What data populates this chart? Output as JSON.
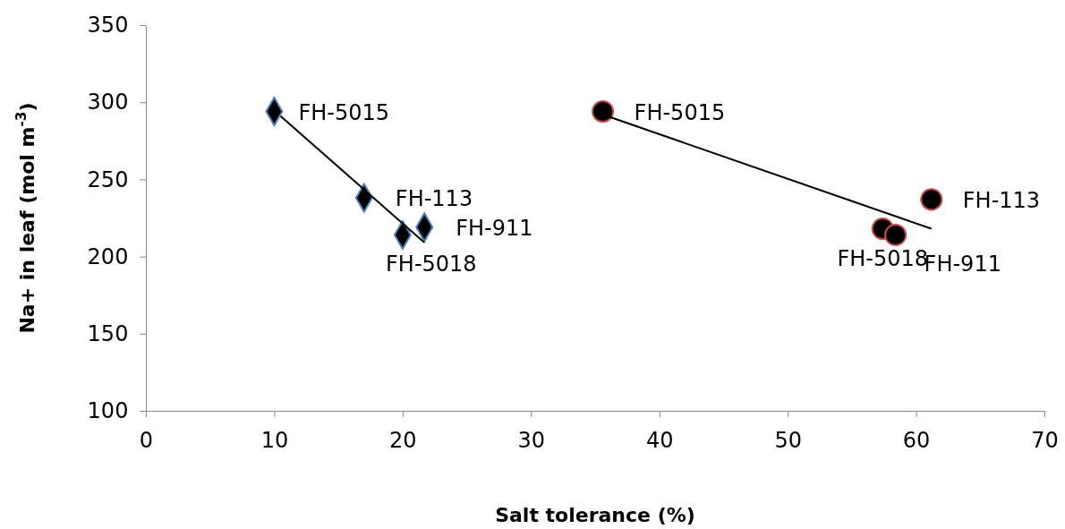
{
  "chart_data": {
    "type": "scatter",
    "xlabel": "Salt tolerance (%)",
    "ylabel": "Na+ in leaf (mol m$^{-3}$)",
    "xlim": [
      0,
      70
    ],
    "xticks": [
      0,
      10,
      20,
      30,
      40,
      50,
      60,
      70
    ],
    "ylim": [
      100,
      350
    ],
    "yticks": [
      100,
      150,
      200,
      250,
      300,
      350
    ],
    "grid": false,
    "series": [
      {
        "marker": "diamond",
        "color": "#000000",
        "x": [
          10,
          17,
          20,
          21.7
        ],
        "values": [
          294,
          238,
          214,
          219
        ]
      },
      {
        "type": "line",
        "marker": "none",
        "color": "#000000",
        "x": [
          10.5,
          21.7
        ],
        "values": [
          291,
          209
        ]
      },
      {
        "marker": "circle",
        "color": "#000000",
        "x": [
          35.6,
          61.2,
          57.4,
          58.4
        ],
        "values": [
          294,
          237,
          218,
          214
        ]
      },
      {
        "type": "line",
        "marker": "none",
        "color": "#000000",
        "x": [
          35.6,
          61.2
        ],
        "values": [
          292,
          218
        ]
      }
    ],
    "annotations": [
      {
        "text": "FH-5015",
        "x": 10,
        "y": 294
      },
      {
        "text": "FH-113",
        "x": 17,
        "y": 238
      },
      {
        "text": "FH-911",
        "x": 21.7,
        "y": 219
      },
      {
        "text": "FH-5018",
        "x": 20,
        "y": 214
      },
      {
        "text": "FH-5015",
        "x": 35.6,
        "y": 294
      },
      {
        "text": "FH-113",
        "x": 61.2,
        "y": 237
      },
      {
        "text": "FH-5018",
        "x": 57.4,
        "y": 218
      },
      {
        "text": "FH-911",
        "x": 58.4,
        "y": 214
      }
    ]
  }
}
